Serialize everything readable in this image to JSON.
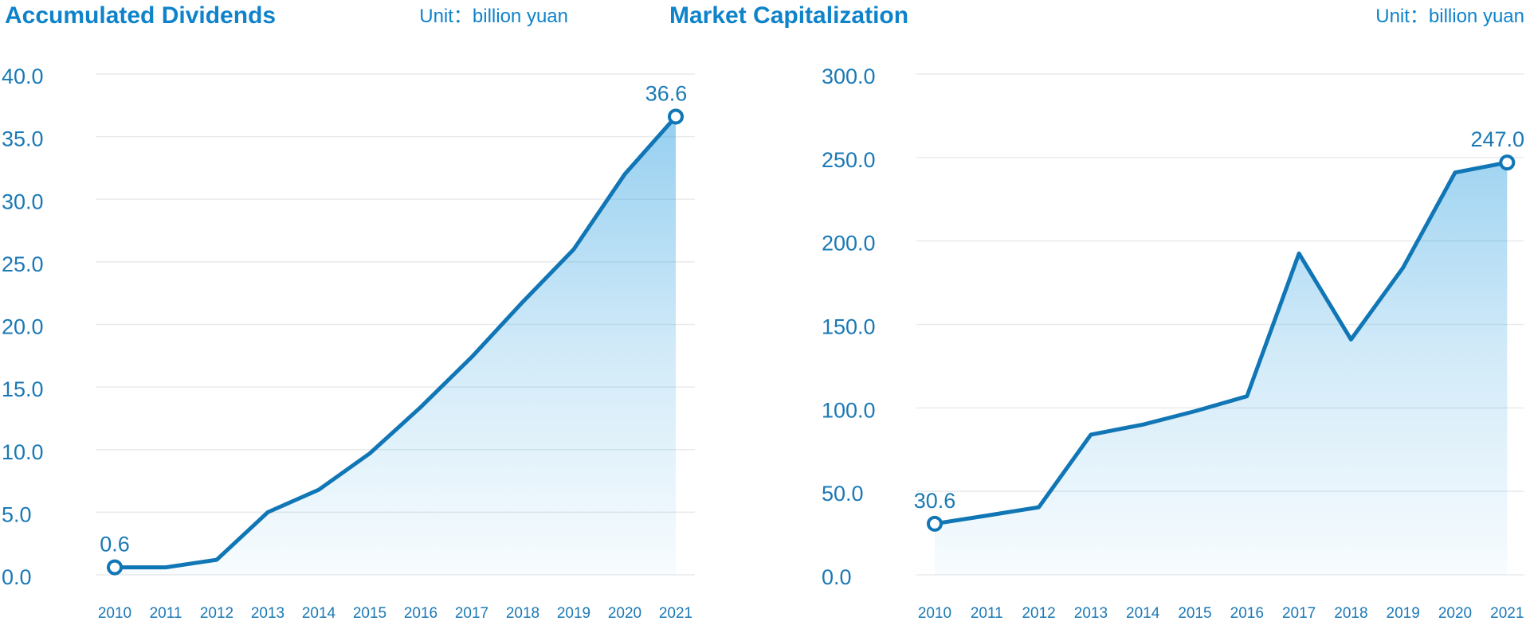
{
  "colors": {
    "title": "#0f83ca",
    "axis_label": "#1a79b6",
    "line": "#1176b5",
    "grid": "#e8eaec",
    "marker_fill": "#ffffff",
    "fill_top": "rgba(25,150,222,0.50)",
    "fill_mid": "rgba(25,150,222,0.20)",
    "fill_bottom": "rgba(25,150,222,0.03)"
  },
  "chart_data": [
    {
      "type": "area",
      "title": "Accumulated Dividends",
      "unit_label": "Unit：billion yuan",
      "x": [
        2010,
        2011,
        2012,
        2013,
        2014,
        2015,
        2016,
        2017,
        2018,
        2019,
        2020,
        2021
      ],
      "values": [
        0.6,
        0.6,
        1.2,
        5.0,
        6.8,
        9.7,
        13.4,
        17.4,
        21.8,
        26.0,
        32.0,
        36.6
      ],
      "ylim": [
        0,
        40
      ],
      "ytick_step": 5,
      "grid": true,
      "legend": false,
      "point_labels": {
        "first": "0.6",
        "last": "36.6"
      }
    },
    {
      "type": "area",
      "title": "Market Capitalization",
      "unit_label": "Unit：billion yuan",
      "x": [
        2010,
        2011,
        2012,
        2013,
        2014,
        2015,
        2016,
        2017,
        2018,
        2019,
        2020,
        2021
      ],
      "values": [
        30.6,
        35.5,
        40.5,
        84.0,
        90.0,
        98.0,
        107.0,
        192.5,
        141.0,
        184.0,
        241.0,
        247.0
      ],
      "ylim": [
        0,
        300
      ],
      "ytick_step": 50,
      "grid": true,
      "legend": false,
      "point_labels": {
        "first": "30.6",
        "last": "247.0"
      }
    }
  ]
}
